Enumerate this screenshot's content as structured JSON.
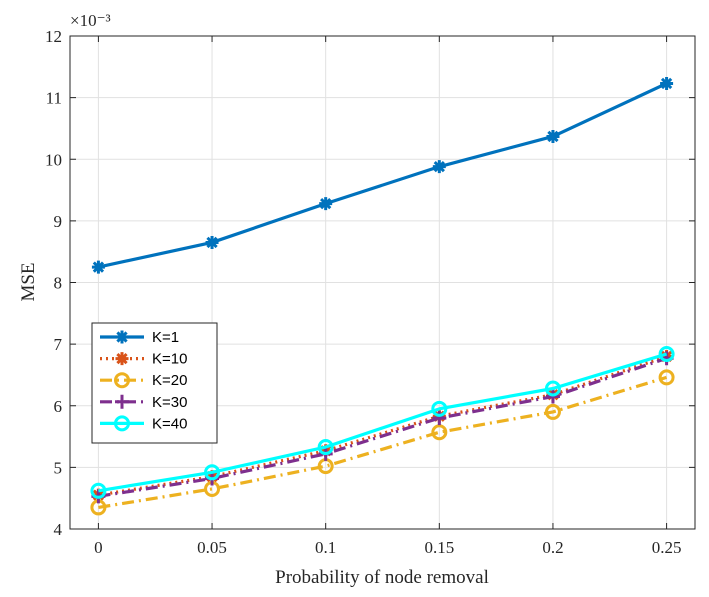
{
  "chart_data": {
    "type": "line",
    "title": "",
    "xlabel": "Probability of node removal",
    "ylabel": "MSE",
    "exponent_label": "×10⁻³",
    "x": [
      0,
      0.05,
      0.1,
      0.15,
      0.2,
      0.25
    ],
    "x_tick_labels": [
      "0",
      "0.05",
      "0.1",
      "0.15",
      "0.2",
      "0.25"
    ],
    "xlim": [
      -0.0125,
      0.2625
    ],
    "ylim": [
      4,
      12
    ],
    "y_ticks": [
      4,
      5,
      6,
      7,
      8,
      9,
      10,
      11,
      12
    ],
    "y_tick_labels": [
      "4",
      "5",
      "6",
      "7",
      "8",
      "9",
      "10",
      "11",
      "12"
    ],
    "grid": true,
    "legend_position": "lower-left",
    "series": [
      {
        "name": "K=1",
        "values": [
          8.25,
          8.65,
          9.28,
          9.88,
          10.37,
          11.23
        ],
        "color": "#0072BD",
        "dash": "solid",
        "marker": "asterisk"
      },
      {
        "name": "K=10",
        "values": [
          4.55,
          4.85,
          5.27,
          5.83,
          6.18,
          6.8
        ],
        "color": "#D95319",
        "dash": "dotted",
        "marker": "asterisk"
      },
      {
        "name": "K=20",
        "values": [
          4.35,
          4.65,
          5.02,
          5.57,
          5.9,
          6.46
        ],
        "color": "#EDB120",
        "dash": "dashdot",
        "marker": "circle"
      },
      {
        "name": "K=30",
        "values": [
          4.53,
          4.82,
          5.22,
          5.8,
          6.15,
          6.77
        ],
        "color": "#7E2F8E",
        "dash": "dashdot",
        "marker": "plus"
      },
      {
        "name": "K=40",
        "values": [
          4.62,
          4.92,
          5.33,
          5.95,
          6.28,
          6.84
        ],
        "color": "#00FFFF",
        "dash": "solid",
        "marker": "circle"
      }
    ]
  }
}
